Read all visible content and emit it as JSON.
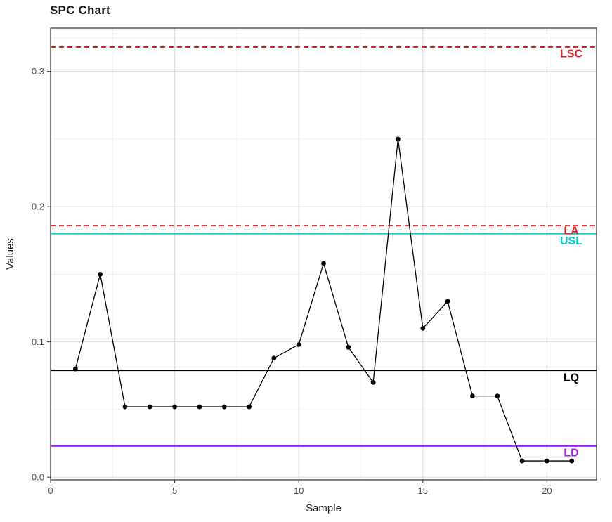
{
  "title": "SPC Chart",
  "chart_data": {
    "type": "line",
    "title": "SPC Chart",
    "xlabel": "Sample",
    "ylabel": "Values",
    "x": [
      1,
      2,
      3,
      4,
      5,
      6,
      7,
      8,
      9,
      10,
      11,
      12,
      13,
      14,
      15,
      16,
      17,
      18,
      19,
      20,
      21
    ],
    "values": [
      0.08,
      0.15,
      0.052,
      0.052,
      0.052,
      0.052,
      0.052,
      0.052,
      0.088,
      0.098,
      0.158,
      0.096,
      0.07,
      0.25,
      0.11,
      0.13,
      0.06,
      0.06,
      0.012,
      0.012,
      0.012
    ],
    "series_color": "#000000",
    "xlim": [
      0,
      22
    ],
    "ylim": [
      -0.002,
      0.332
    ],
    "x_tick_values": [
      0,
      5,
      10,
      15,
      20
    ],
    "x_tick_labels": [
      "0",
      "5",
      "10",
      "15",
      "20"
    ],
    "y_tick_values": [
      0.0,
      0.1,
      0.2,
      0.3
    ],
    "y_tick_labels": [
      "0.0",
      "0.1",
      "0.2",
      "0.3"
    ],
    "x_minor_ticks": [
      2.5,
      7.5,
      12.5,
      17.5
    ],
    "y_minor_ticks": [
      0.05,
      0.15,
      0.25,
      0.325
    ],
    "grid": true,
    "grid_major_color": "#dedede",
    "grid_minor_color": "#efefef",
    "legend": "none",
    "reference_lines": [
      {
        "label": "LSC",
        "value": 0.318,
        "color": "#E02020",
        "style": "dashed",
        "label_dy": 4
      },
      {
        "label": "LA",
        "value": 0.186,
        "color": "#E02020",
        "style": "dashed",
        "label_dy": 2
      },
      {
        "label": "USL",
        "value": 0.18,
        "color": "#00CDCD",
        "style": "solid",
        "label_dy": 5
      },
      {
        "label": "LQ",
        "value": 0.079,
        "color": "#000000",
        "style": "solid",
        "label_dy": 5
      },
      {
        "label": "LD",
        "value": 0.023,
        "color": "#A020F0",
        "style": "solid",
        "label_dy": 4
      }
    ]
  },
  "colors": {
    "title_text": "#1a1a1a",
    "axis_text": "#4d4d4d",
    "axis_title_text": "#222222",
    "panel_border": "#2f2f2f",
    "background": "#ffffff"
  }
}
